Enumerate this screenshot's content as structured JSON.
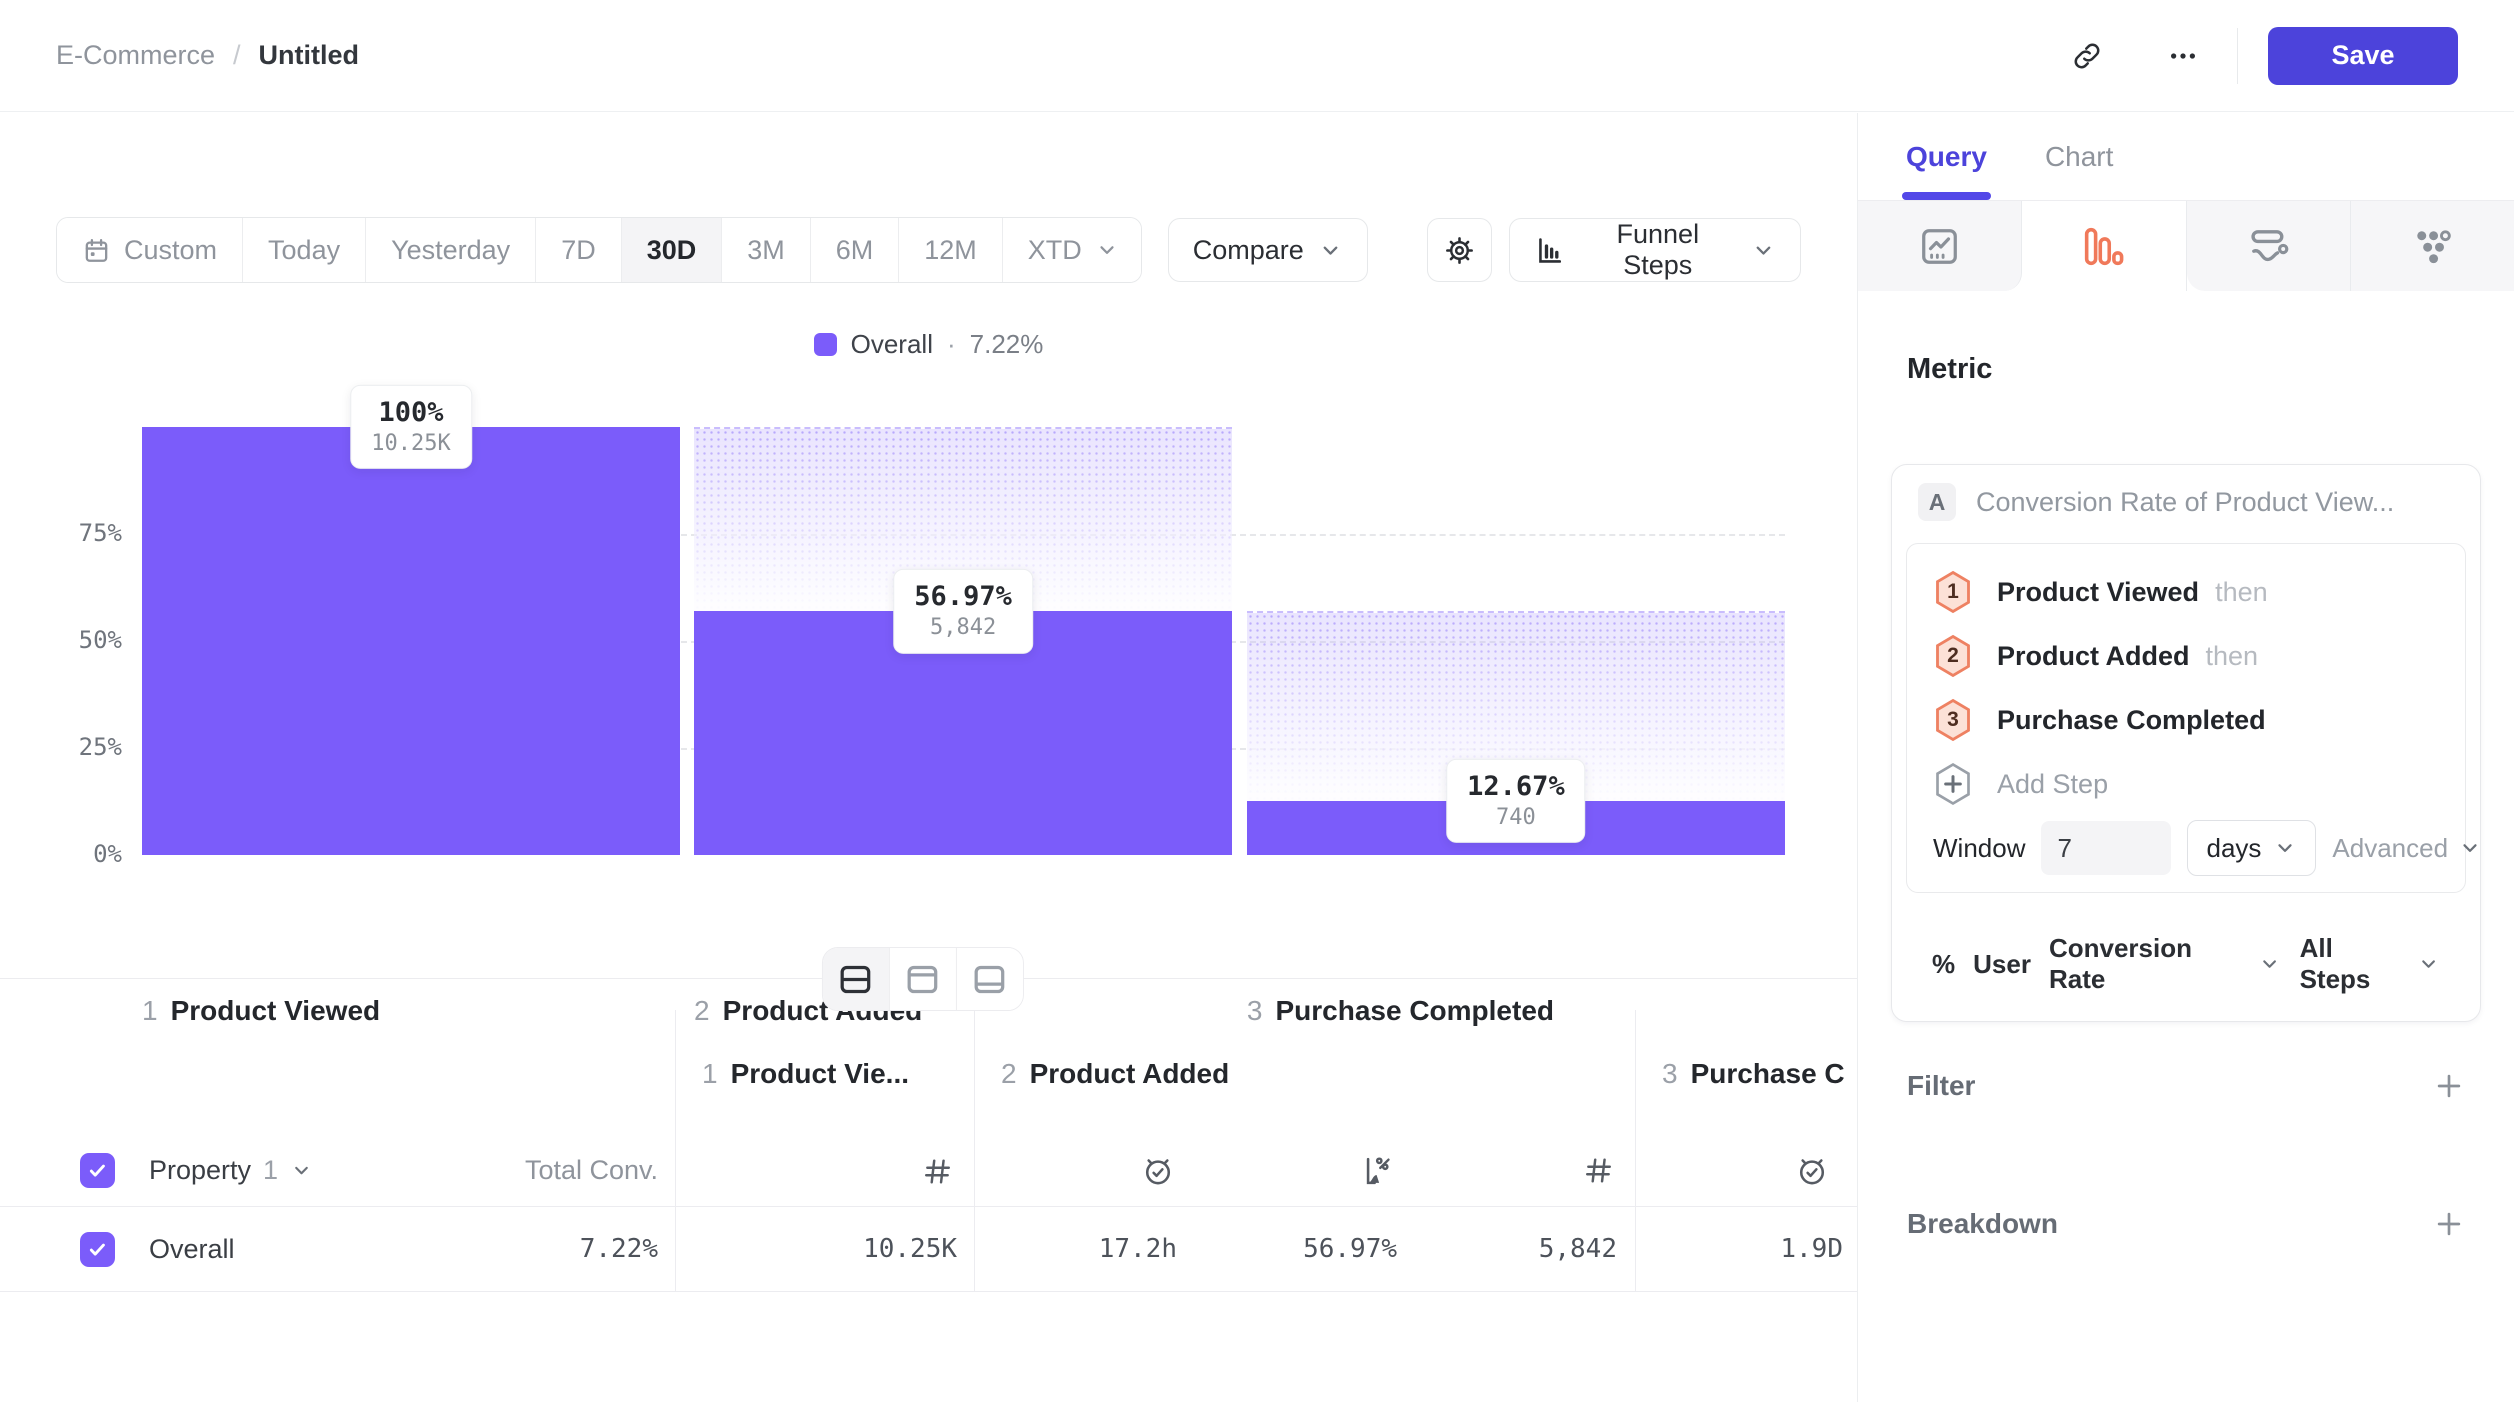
{
  "colors": {
    "accent_indigo": "#4C43DB",
    "bar_purple": "#7B5CFA",
    "coral": "#F0795A"
  },
  "header": {
    "breadcrumb": {
      "project": "E-Commerce",
      "separator": "/",
      "title": "Untitled"
    },
    "save_label": "Save"
  },
  "toolbar": {
    "ranges": [
      {
        "label": "Custom"
      },
      {
        "label": "Today"
      },
      {
        "label": "Yesterday"
      },
      {
        "label": "7D"
      },
      {
        "label": "30D"
      },
      {
        "label": "3M"
      },
      {
        "label": "6M"
      },
      {
        "label": "12M"
      },
      {
        "label": "XTD"
      }
    ],
    "selected_range": "30D",
    "compare_label": "Compare",
    "chart_type_label": "Funnel Steps"
  },
  "legend": {
    "label": "Overall",
    "separator": "·",
    "value": "7.22%"
  },
  "chart_data": {
    "type": "funnel",
    "title": "Overall · 7.22%",
    "categories": [
      "Product Viewed",
      "Product Added",
      "Purchase Completed"
    ],
    "series": [
      {
        "name": "Overall",
        "conversion_pct": [
          100,
          56.97,
          12.67
        ],
        "counts": [
          10250,
          5842,
          740
        ]
      }
    ],
    "overall_conversion": "7.22%",
    "steps": [
      {
        "index": "1",
        "label": "Product Viewed",
        "pct": 100,
        "pct_label": "100%",
        "count_label": "10.25K"
      },
      {
        "index": "2",
        "label": "Product Added",
        "pct": 56.97,
        "pct_label": "56.97%",
        "count_label": "5,842"
      },
      {
        "index": "3",
        "label": "Purchase Completed",
        "pct": 12.67,
        "pct_label": "12.67%",
        "count_label": "740"
      }
    ],
    "y_ticks": [
      "75%",
      "50%",
      "25%",
      "0%"
    ],
    "ylim": [
      0,
      100
    ],
    "grid": "dashed-horizontal",
    "legend_position": "top-center"
  },
  "view_toggles": {
    "icons": [
      "split-horizontal",
      "band-top",
      "band-bottom"
    ],
    "active": "split-horizontal"
  },
  "table": {
    "property": {
      "label": "Property",
      "index": "1"
    },
    "total_header": "Total Conv.",
    "columns": [
      {
        "num": "1",
        "label": "Product Vie...",
        "icons": [
          "hash"
        ]
      },
      {
        "num": "2",
        "label": "Product Added",
        "icons": [
          "clock-check",
          "chart-pct",
          "hash"
        ]
      },
      {
        "num": "3",
        "label": "Purchase C",
        "icons": [
          "clock-check"
        ]
      }
    ],
    "row": {
      "label": "Overall",
      "total_conv": "7.22%",
      "cells": [
        "10.25K",
        "17.2h",
        "56.97%",
        "5,842",
        "1.9D"
      ]
    }
  },
  "sidebar": {
    "tabs": [
      {
        "label": "Query"
      },
      {
        "label": "Chart"
      }
    ],
    "active_tab": "Query",
    "icon_tabs": [
      "insights-chart",
      "funnel-bars",
      "flow",
      "retention-grid"
    ],
    "active_icon_tab": "funnel-bars",
    "metric_heading": "Metric",
    "metric": {
      "badge": "A",
      "title": "Conversion Rate of Product View...",
      "steps": [
        {
          "num": "1",
          "label": "Product Viewed",
          "connector": "then"
        },
        {
          "num": "2",
          "label": "Product Added",
          "connector": "then"
        },
        {
          "num": "3",
          "label": "Purchase Completed",
          "connector": ""
        }
      ],
      "add_step_label": "Add Step",
      "window_label": "Window",
      "window_value": "7",
      "window_unit": "days",
      "advanced_label": "Advanced",
      "measure": {
        "symbol": "%",
        "entity": "User",
        "metric": "Conversion Rate",
        "scope": "All Steps"
      }
    },
    "filter_label": "Filter",
    "breakdown_label": "Breakdown"
  }
}
